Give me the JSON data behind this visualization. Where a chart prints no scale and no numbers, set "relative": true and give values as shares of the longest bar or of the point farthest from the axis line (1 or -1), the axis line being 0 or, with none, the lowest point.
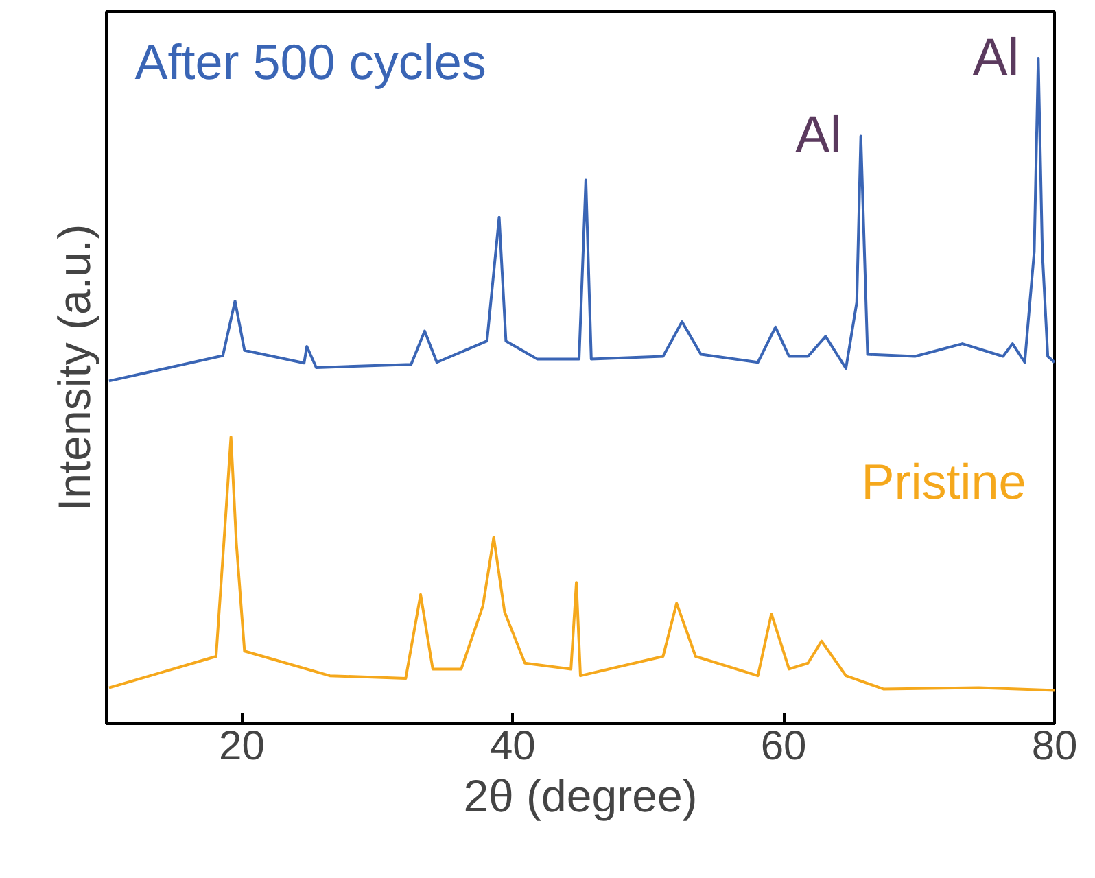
{
  "chart_data": {
    "type": "line",
    "relative": true,
    "xlabel": "2θ (degree)",
    "ylabel": "Intensity (a.u.)",
    "xlim": [
      10,
      80
    ],
    "xticks": [
      20,
      40,
      60,
      80
    ],
    "grid": false,
    "tick_labels": "x",
    "series": [
      {
        "name": "After 500 cycles",
        "color": "#3a65b5",
        "x": [
          10.2,
          18.6,
          19.5,
          20.2,
          24.6,
          24.8,
          25.5,
          32.5,
          33.5,
          34.4,
          38.1,
          39.0,
          39.5,
          41.8,
          44.9,
          45.4,
          45.8,
          51.1,
          52.5,
          53.9,
          58.1,
          59.4,
          60.4,
          61.8,
          63.1,
          64.6,
          65.4,
          65.7,
          66.2,
          69.7,
          73.2,
          76.2,
          76.9,
          77.8,
          78.5,
          78.8,
          79.1,
          79.5,
          80.0
        ],
        "values": [
          0.515,
          0.553,
          0.635,
          0.561,
          0.542,
          0.567,
          0.535,
          0.54,
          0.59,
          0.543,
          0.575,
          0.761,
          0.575,
          0.548,
          0.548,
          0.817,
          0.548,
          0.552,
          0.604,
          0.555,
          0.543,
          0.596,
          0.552,
          0.552,
          0.582,
          0.534,
          0.633,
          0.883,
          0.555,
          0.552,
          0.571,
          0.552,
          0.571,
          0.543,
          0.709,
          1.0,
          0.709,
          0.552,
          0.543
        ]
      },
      {
        "name": "Pristine",
        "color": "#f5a81c",
        "x": [
          10.2,
          18.1,
          18.8,
          19.2,
          19.6,
          20.2,
          26.5,
          32.1,
          33.2,
          34.1,
          36.2,
          37.8,
          38.6,
          39.4,
          40.9,
          44.3,
          44.7,
          45.0,
          51.1,
          52.1,
          53.5,
          58.1,
          59.1,
          60.4,
          61.8,
          62.8,
          64.6,
          67.4,
          74.4,
          80.0
        ],
        "values": [
          0.054,
          0.101,
          0.309,
          0.431,
          0.271,
          0.109,
          0.072,
          0.068,
          0.194,
          0.082,
          0.082,
          0.177,
          0.28,
          0.168,
          0.091,
          0.082,
          0.212,
          0.072,
          0.101,
          0.181,
          0.101,
          0.072,
          0.165,
          0.082,
          0.091,
          0.124,
          0.072,
          0.052,
          0.054,
          0.05
        ]
      }
    ],
    "annotations": [
      {
        "text": "Al",
        "x": 65.7,
        "y": 0.883
      },
      {
        "text": "Al",
        "x": 78.8,
        "y": 1.0
      }
    ]
  }
}
